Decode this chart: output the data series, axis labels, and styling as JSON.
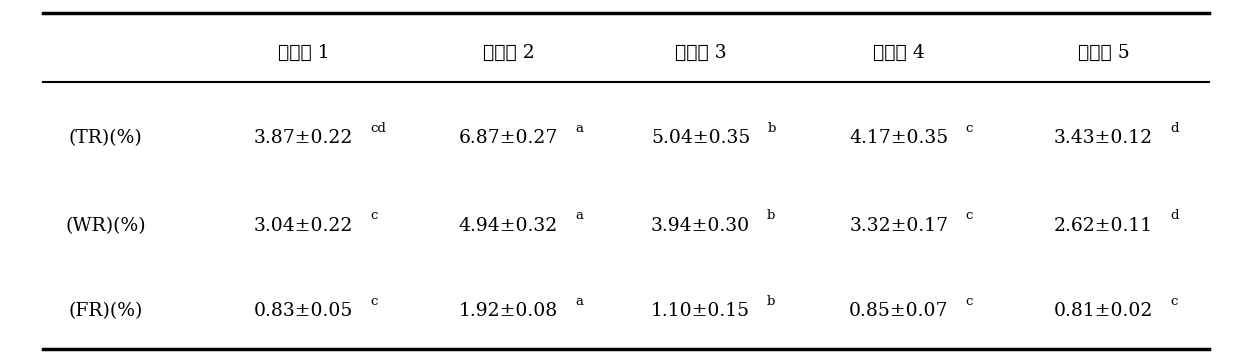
{
  "col_headers": [
    "实施例 1",
    "实施例 2",
    "实施例 3",
    "实施例 4",
    "实施例 5"
  ],
  "rows": [
    {
      "label": "(TR)(%)",
      "values": [
        {
          "main": "3.87±0.22",
          "sup": "cd"
        },
        {
          "main": "6.87±0.27",
          "sup": "a"
        },
        {
          "main": "5.04±0.35",
          "sup": "b"
        },
        {
          "main": "4.17±0.35",
          "sup": "c"
        },
        {
          "main": "3.43±0.12",
          "sup": "d"
        }
      ]
    },
    {
      "label": "(WR)(%)",
      "values": [
        {
          "main": "3.04±0.22",
          "sup": "c"
        },
        {
          "main": "4.94±0.32",
          "sup": "a"
        },
        {
          "main": "3.94±0.30",
          "sup": "b"
        },
        {
          "main": "3.32±0.17",
          "sup": "c"
        },
        {
          "main": "2.62±0.11",
          "sup": "d"
        }
      ]
    },
    {
      "label": "(FR)(%)",
      "values": [
        {
          "main": "0.83±0.05",
          "sup": "c"
        },
        {
          "main": "1.92±0.08",
          "sup": "a"
        },
        {
          "main": "1.10±0.15",
          "sup": "b"
        },
        {
          "main": "0.85±0.07",
          "sup": "c"
        },
        {
          "main": "0.81±0.02",
          "sup": "c"
        }
      ]
    }
  ],
  "background_color": "#ffffff",
  "text_color": "#000000",
  "header_fontsize": 13.5,
  "cell_fontsize": 13.5,
  "label_fontsize": 13.5,
  "sup_fontsize": 9.5,
  "figwidth": 12.4,
  "figheight": 3.64,
  "dpi": 100
}
